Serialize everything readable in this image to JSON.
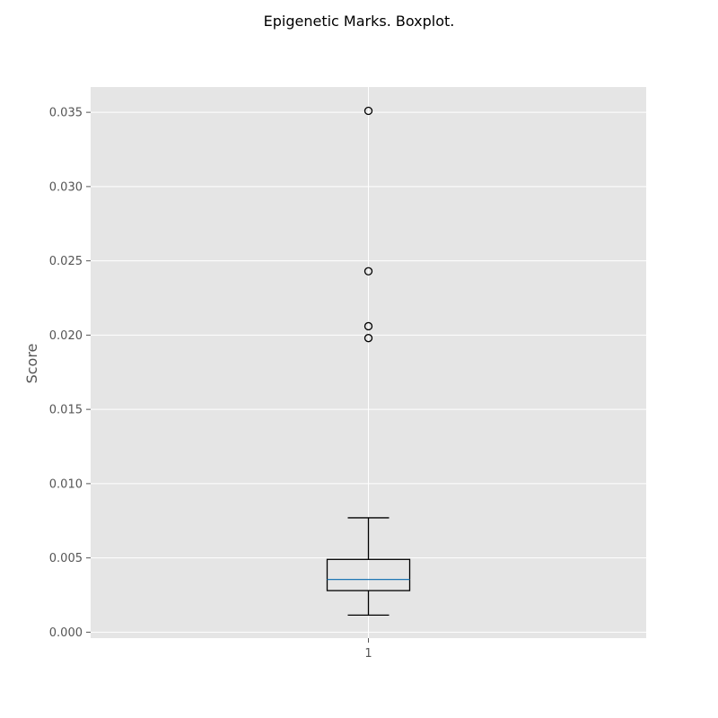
{
  "chart_data": {
    "type": "boxplot",
    "title": "Epigenetic Marks. Boxplot.",
    "xlabel": "",
    "ylabel": "Score",
    "categories": [
      "1"
    ],
    "ylim": [
      -0.0004,
      0.0367
    ],
    "yticks": [
      0.0,
      0.005,
      0.01,
      0.015,
      0.02,
      0.025,
      0.03,
      0.035
    ],
    "ytick_labels": [
      "0.000",
      "0.005",
      "0.010",
      "0.015",
      "0.020",
      "0.025",
      "0.030",
      "0.035"
    ],
    "grid": true,
    "boxes": [
      {
        "category": "1",
        "whisker_low": 0.00115,
        "q1": 0.0028,
        "median": 0.00355,
        "q3": 0.0049,
        "whisker_high": 0.0077,
        "outliers": [
          0.0198,
          0.0206,
          0.0243,
          0.0351
        ]
      }
    ],
    "colors": {
      "plot_background": "#e5e5e5",
      "grid": "#ffffff",
      "box": "#000000",
      "median": "#1f77b4",
      "tick_label": "#555555"
    }
  }
}
